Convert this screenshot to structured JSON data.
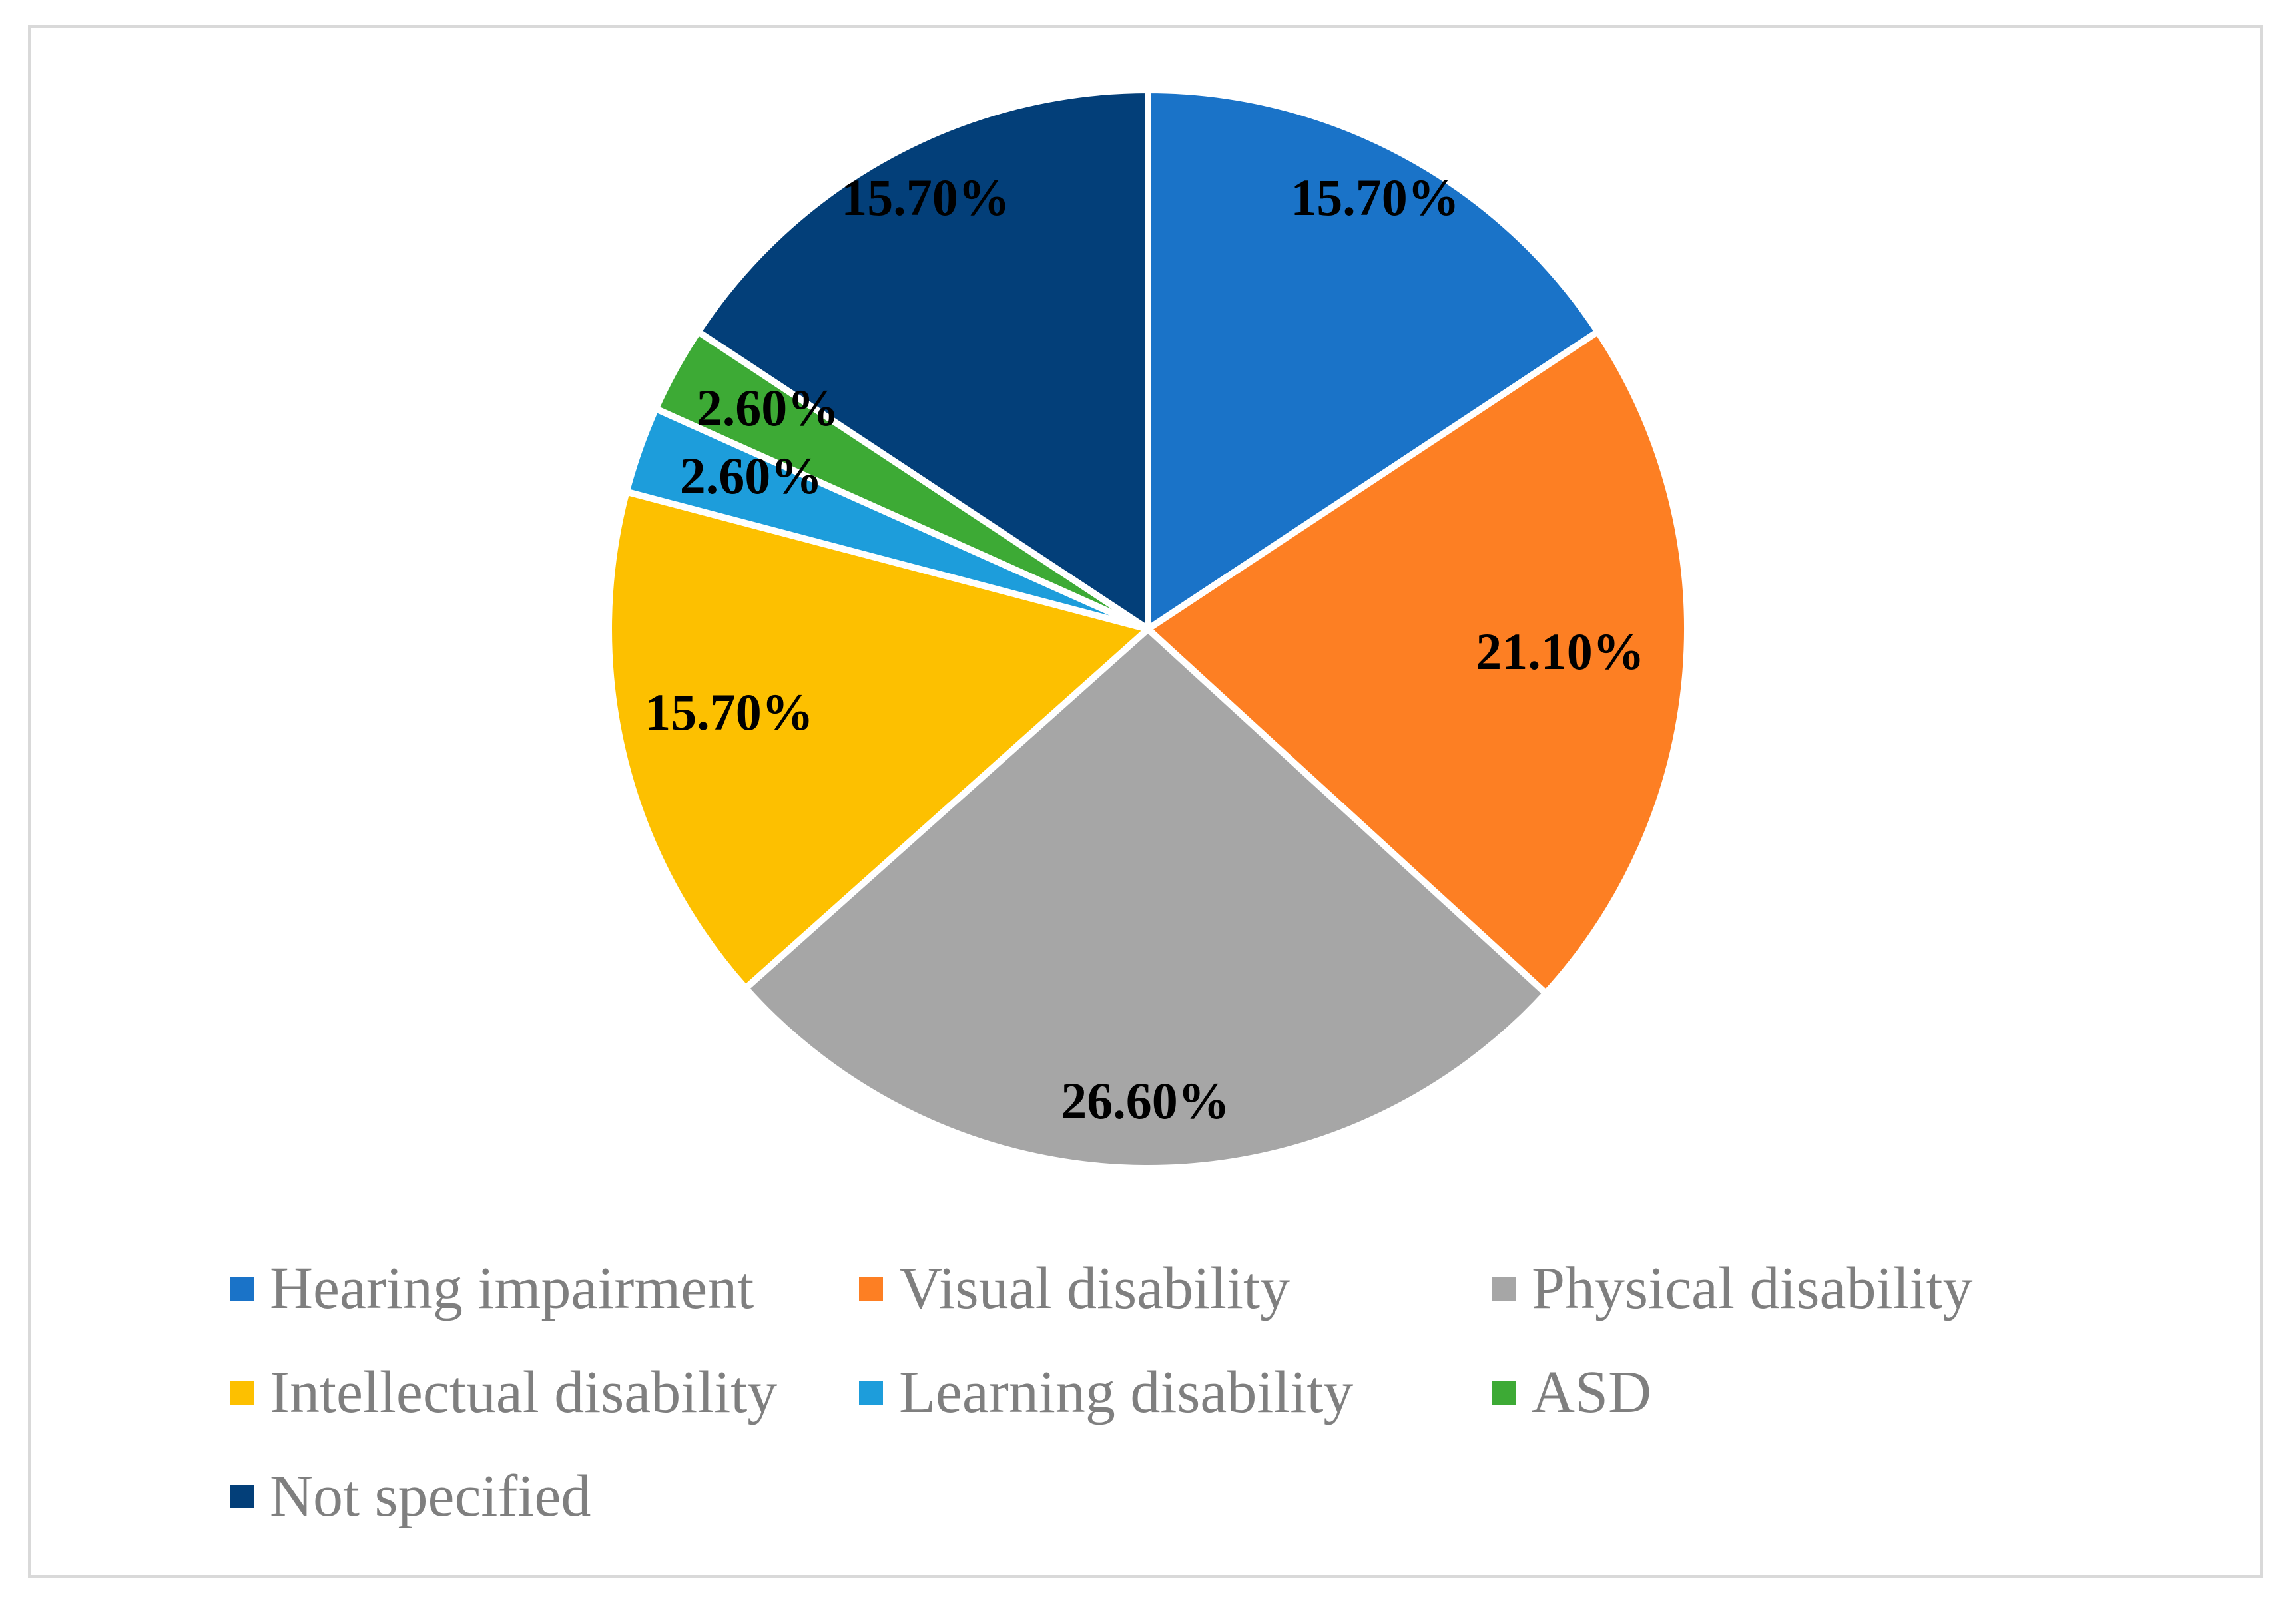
{
  "chart_data": {
    "type": "pie",
    "title": "",
    "legend_position": "bottom",
    "start_angle_deg": 0,
    "direction": "clockwise",
    "slices": [
      {
        "key": "hearing",
        "label": "Hearing impairment",
        "value": 15.7,
        "display": "15.70%",
        "color": "#1a73c8"
      },
      {
        "key": "visual",
        "label": "Visual disability",
        "value": 21.1,
        "display": "21.10%",
        "color": "#fd7f23"
      },
      {
        "key": "physical",
        "label": "Physical disability",
        "value": 26.6,
        "display": "26.60%",
        "color": "#a6a6a6"
      },
      {
        "key": "intellectual",
        "label": "Intellectual disability",
        "value": 15.7,
        "display": "15.70%",
        "color": "#fdc000"
      },
      {
        "key": "learning",
        "label": "Learning disability",
        "value": 2.6,
        "display": "2.60%",
        "color": "#1d9ddb"
      },
      {
        "key": "asd",
        "label": "ASD",
        "value": 2.6,
        "display": "2.60%",
        "color": "#3daa35"
      },
      {
        "key": "not-specified",
        "label": "Not specified",
        "value": 15.7,
        "display": "15.70%",
        "color": "#033f79"
      }
    ]
  }
}
